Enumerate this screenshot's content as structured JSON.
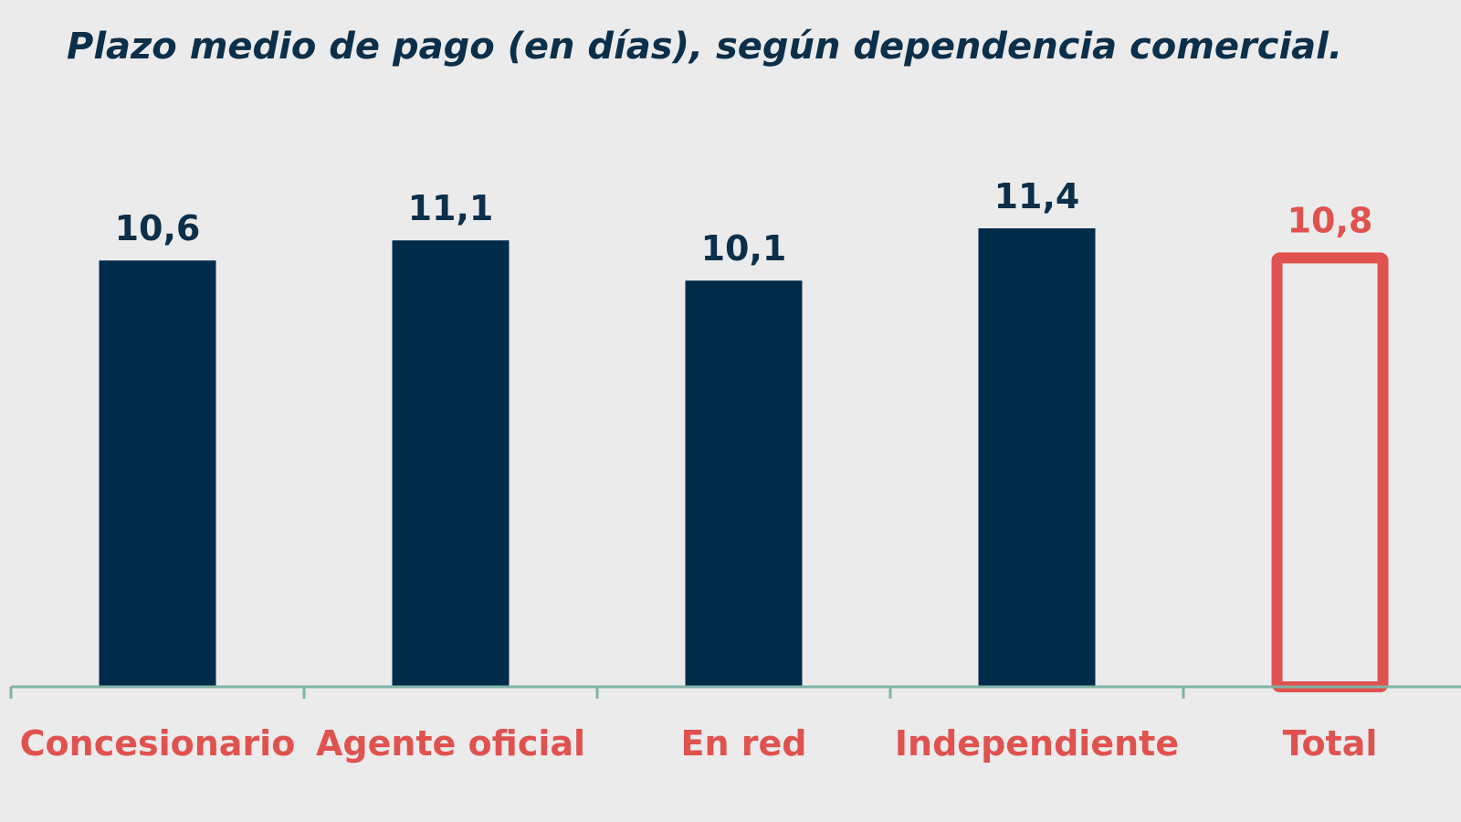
{
  "chart_data": {
    "type": "bar",
    "title": "Plazo medio de pago (en días), según dependencia comercial.",
    "xlabel": "",
    "ylabel": "",
    "ylim": [
      0,
      11.4
    ],
    "grid": false,
    "legend": "none",
    "categories": [
      "Concesionario",
      "Agente oficial",
      "En red",
      "Independiente",
      "Total"
    ],
    "values": [
      10.6,
      11.1,
      10.1,
      11.4,
      10.8
    ],
    "value_labels": [
      "10,6",
      "11,1",
      "10,1",
      "11,4",
      "10,8"
    ],
    "highlighted_category": "Total",
    "colors": {
      "bar": "#002b49",
      "highlight": "#e0524f",
      "axis": "#7fb3a6",
      "value_label": "#0c2f4a",
      "category_label": "#e0524f",
      "title": "#0c2f4a",
      "background": "#ebebeb"
    }
  }
}
